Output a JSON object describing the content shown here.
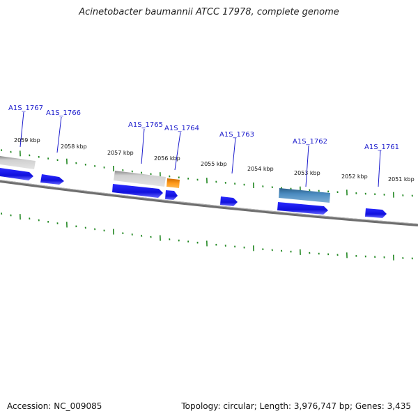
{
  "title": "Acinetobacter baumannii ATCC 17978, complete genome",
  "footer": {
    "accession": "Accession: NC_009085",
    "summary": "Topology: circular; Length: 3,976,747 bp; Genes: 3,435"
  },
  "kbp_labels": [
    "2059 kbp",
    "2058 kbp",
    "2057 kbp",
    "2056 kbp",
    "2055 kbp",
    "2054 kbp",
    "2053 kbp",
    "2052 kbp",
    "2051 kbp"
  ],
  "gene_labels": [
    "A1S_1767",
    "A1S_1766",
    "A1S_1765",
    "A1S_1764",
    "A1S_1763",
    "A1S_1762",
    "A1S_1761"
  ],
  "colors": {
    "backbone": "#777777",
    "tick": "#228822",
    "cds": "#1a1aee",
    "gene_gray": "#c8c8c8",
    "gene_orange": "#ee8800",
    "gene_steel": "#3f7fb4",
    "label": "#1a1acc"
  }
}
